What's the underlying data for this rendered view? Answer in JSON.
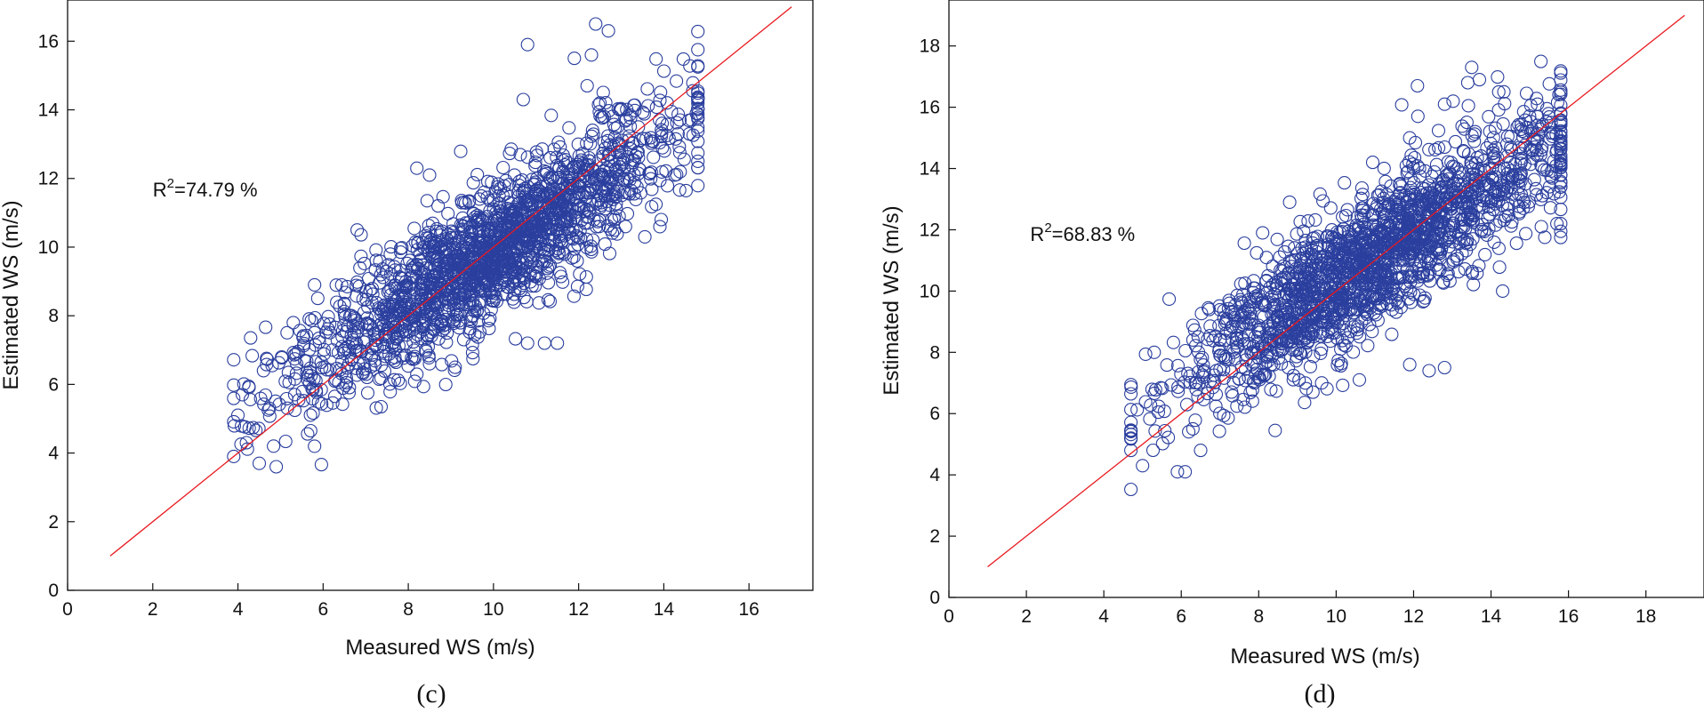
{
  "chart_data": [
    {
      "type": "scatter",
      "panel": "c",
      "caption": "(c)",
      "xlabel": "Measured WS (m/s)",
      "ylabel": "Estimated WS (m/s)",
      "xlim": [
        0,
        17.5
      ],
      "ylim": [
        0,
        17.2
      ],
      "xticks": [
        0,
        2,
        4,
        6,
        8,
        10,
        12,
        14,
        16
      ],
      "yticks": [
        0,
        2,
        4,
        6,
        8,
        10,
        12,
        14,
        16
      ],
      "annotation": {
        "prefix": "R",
        "sup": "2",
        "text": "=74.79 %",
        "x": 2,
        "y": 11.7
      },
      "fit_line": {
        "color": "#e8191f",
        "x": [
          1,
          17
        ],
        "y": [
          1,
          17
        ]
      },
      "marker_color": "#2b3f9e",
      "series_model": {
        "n": 1900,
        "x_mean": 9.8,
        "x_sd": 2.2,
        "x_range": [
          3.9,
          14.8
        ],
        "slope": 0.8,
        "intercept": 1.9,
        "y_sd": 0.95,
        "seed": 17
      },
      "points": [
        [
          3.9,
          3.9
        ],
        [
          4.0,
          5.1
        ],
        [
          4.6,
          6.4
        ],
        [
          4.5,
          3.7
        ],
        [
          4.9,
          3.6
        ],
        [
          4.2,
          4.3
        ],
        [
          5.3,
          7.8
        ],
        [
          5.8,
          4.2
        ],
        [
          5.8,
          8.9
        ],
        [
          6.8,
          10.5
        ],
        [
          8.2,
          12.3
        ],
        [
          8.5,
          12.1
        ],
        [
          10.8,
          15.9
        ],
        [
          12.4,
          16.5
        ],
        [
          12.7,
          16.3
        ],
        [
          11.9,
          15.5
        ],
        [
          12.3,
          15.6
        ],
        [
          12.2,
          14.7
        ],
        [
          12.5,
          14.2
        ],
        [
          10.7,
          14.3
        ],
        [
          11.2,
          7.2
        ],
        [
          11.5,
          7.2
        ],
        [
          10.8,
          7.2
        ],
        [
          12.6,
          13.8
        ],
        [
          13.9,
          13.7
        ],
        [
          14.6,
          13.3
        ],
        [
          14.8,
          12.5
        ],
        [
          13.1,
          10.6
        ],
        [
          9.1,
          6.5
        ],
        [
          8.5,
          6.6
        ]
      ]
    },
    {
      "type": "scatter",
      "panel": "d",
      "caption": "(d)",
      "xlabel": "Measured WS (m/s)",
      "ylabel": "Estimated WS (m/s)",
      "xlim": [
        0,
        19.5
      ],
      "ylim": [
        0,
        19.5
      ],
      "xticks": [
        0,
        2,
        4,
        6,
        8,
        10,
        12,
        14,
        16,
        18
      ],
      "yticks": [
        0,
        2,
        4,
        6,
        8,
        10,
        12,
        14,
        16,
        18
      ],
      "annotation": {
        "prefix": "R",
        "sup": "2",
        "text": "=68.83 %",
        "x": 2.1,
        "y": 11.8
      },
      "fit_line": {
        "color": "#e8191f",
        "x": [
          1,
          19
        ],
        "y": [
          1,
          19
        ]
      },
      "marker_color": "#2b3f9e",
      "series_model": {
        "n": 1900,
        "x_mean": 10.9,
        "x_sd": 2.5,
        "x_range": [
          4.7,
          15.8
        ],
        "slope": 0.78,
        "intercept": 2.5,
        "y_sd": 1.1,
        "seed": 29
      },
      "points": [
        [
          4.7,
          4.8
        ],
        [
          4.7,
          5.2
        ],
        [
          5.0,
          4.3
        ],
        [
          5.9,
          4.1
        ],
        [
          6.1,
          4.1
        ],
        [
          6.5,
          4.8
        ],
        [
          5.3,
          8.0
        ],
        [
          8.1,
          11.9
        ],
        [
          8.8,
          12.9
        ],
        [
          11.9,
          15.0
        ],
        [
          12.1,
          16.7
        ],
        [
          12.8,
          16.1
        ],
        [
          13.5,
          17.3
        ],
        [
          13.4,
          16.8
        ],
        [
          13.7,
          16.9
        ],
        [
          14.2,
          16.5
        ],
        [
          15.2,
          16.1
        ],
        [
          15.8,
          14.1
        ],
        [
          15.7,
          14.6
        ],
        [
          12.8,
          7.5
        ],
        [
          12.4,
          7.4
        ],
        [
          11.9,
          7.6
        ],
        [
          10.6,
          7.1
        ],
        [
          9.4,
          6.7
        ],
        [
          14.3,
          10.0
        ],
        [
          15.3,
          12.1
        ],
        [
          15.7,
          12.2
        ]
      ]
    }
  ]
}
